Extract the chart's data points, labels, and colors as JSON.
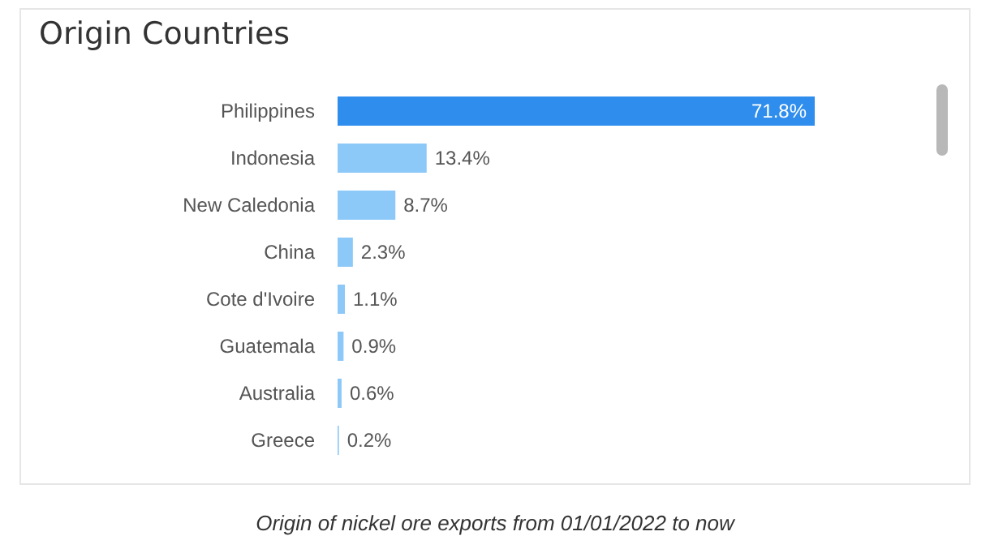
{
  "chart_data": {
    "type": "bar",
    "orientation": "horizontal",
    "title": "Origin Countries",
    "categories": [
      "Philippines",
      "Indonesia",
      "New Caledonia",
      "China",
      "Cote d'Ivoire",
      "Guatemala",
      "Australia",
      "Greece"
    ],
    "values": [
      71.8,
      13.4,
      8.7,
      2.3,
      1.1,
      0.9,
      0.6,
      0.2
    ],
    "colors": [
      "#2e8ded",
      "#8cc8f8",
      "#8cc8f8",
      "#8cc8f8",
      "#8cc8f8",
      "#8cc8f8",
      "#8cc8f8",
      "#8cc8f8"
    ],
    "value_labels": [
      "71.8%",
      "13.4%",
      "8.7%",
      "2.3%",
      "1.1%",
      "0.9%",
      "0.6%",
      "0.2%"
    ],
    "annotations": [
      "Origin of nickel ore exports from 01/01/2022 to now"
    ]
  }
}
